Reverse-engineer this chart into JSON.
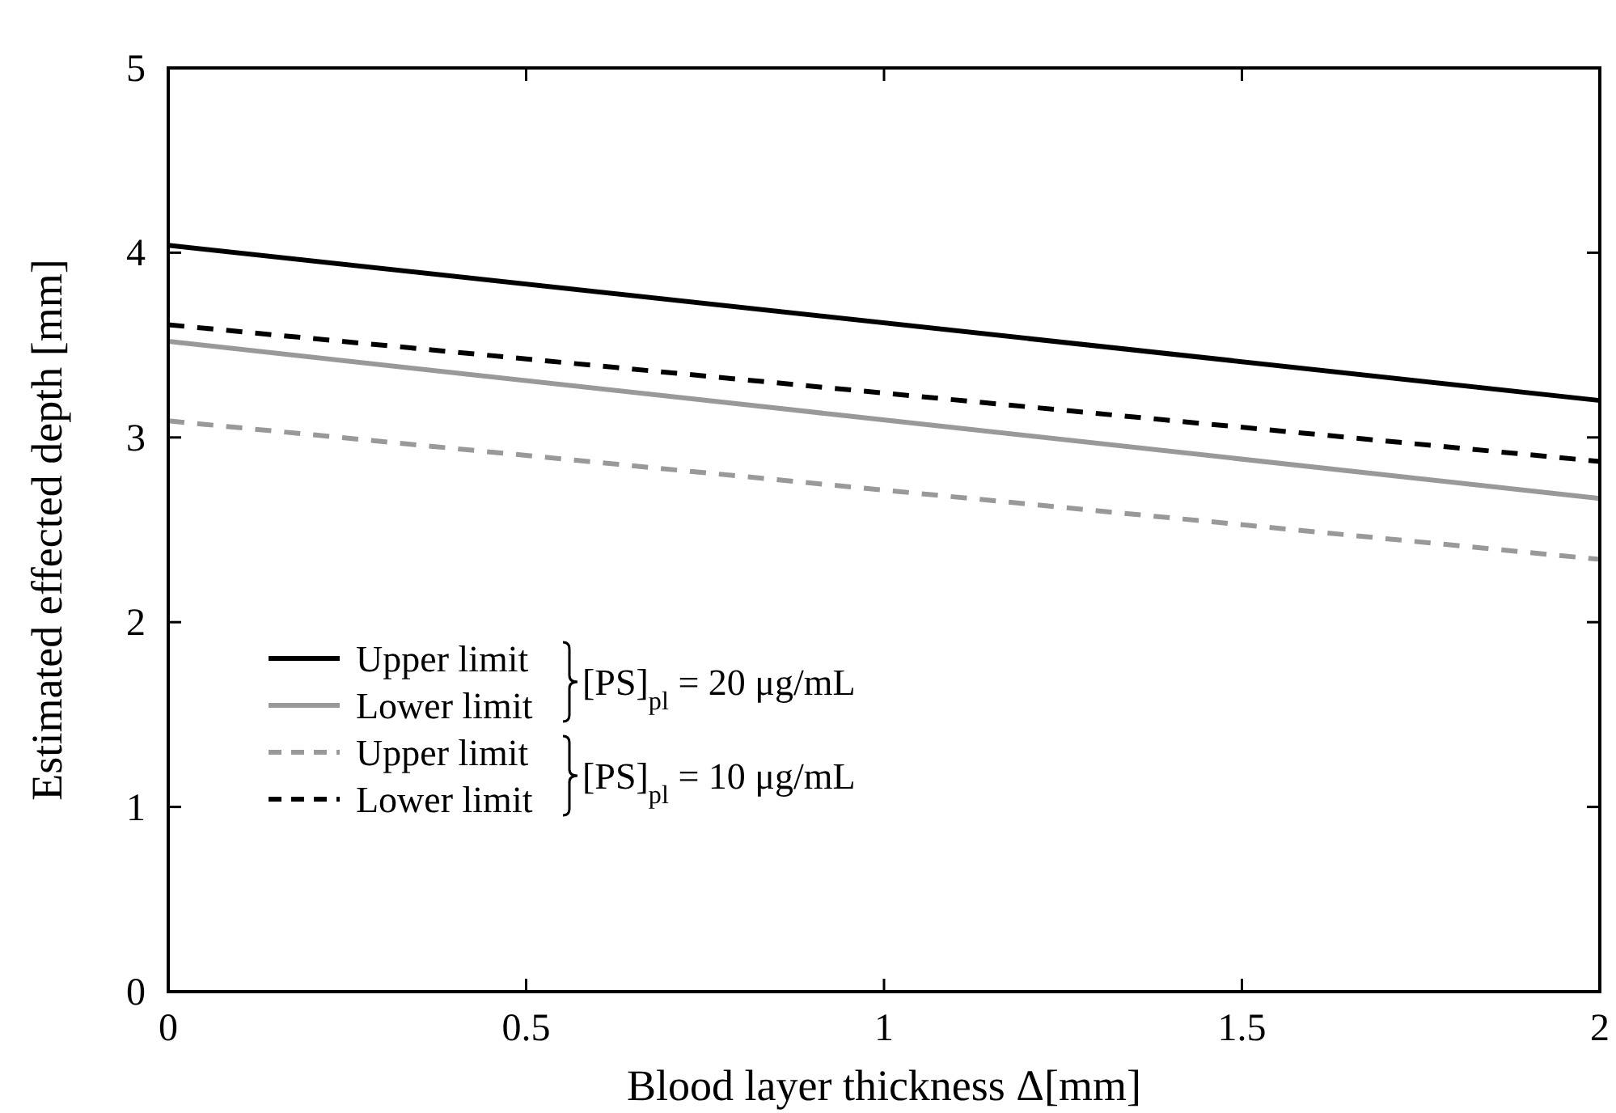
{
  "chart_data": {
    "type": "line",
    "xlabel": "Blood layer thickness Δ[mm]",
    "ylabel": "Estimated effected depth [mm]",
    "x": [
      0,
      2
    ],
    "series": [
      {
        "name": "Upper limit",
        "color": "#000000",
        "values": [
          4.04,
          3.2
        ],
        "line_style": "solid"
      },
      {
        "name": "Lower limit",
        "color": "#999999",
        "values": [
          3.52,
          2.67
        ],
        "line_style": "solid"
      },
      {
        "name": "Upper limit",
        "color": "#999999",
        "values": [
          3.09,
          2.34
        ],
        "line_style": "dashed"
      },
      {
        "name": "Lower limit",
        "color": "#000000",
        "values": [
          3.61,
          2.87
        ],
        "line_style": "dashed"
      }
    ],
    "annotations": [
      "[PS]$_{pl}$ = 20 μg/mL",
      "[PS]$_{pl}$ = 10 μg/mL"
    ],
    "xlim": [
      0,
      2
    ],
    "ylim": [
      0,
      5
    ],
    "xticks": [
      0,
      0.5,
      1,
      1.5,
      2
    ],
    "yticks": [
      0,
      1,
      2,
      3,
      4,
      5
    ],
    "grid": false,
    "legend": "bottom left"
  }
}
